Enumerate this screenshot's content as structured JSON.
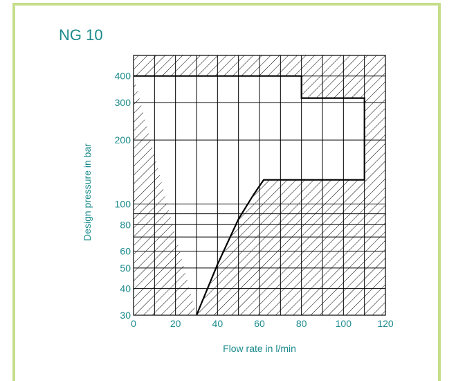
{
  "title": "NG 10",
  "chart_data": {
    "type": "area",
    "title": "NG 10",
    "xlabel": "Flow rate in l/min",
    "ylabel": "Design pressure in bar",
    "xlim": [
      0,
      120
    ],
    "ylim": [
      30,
      500
    ],
    "yscale": "log",
    "x_ticks": [
      0,
      20,
      40,
      60,
      80,
      100,
      120
    ],
    "y_ticks": [
      30,
      40,
      50,
      60,
      80,
      100,
      200,
      300,
      400
    ],
    "grid_x": [
      0,
      10,
      20,
      30,
      40,
      50,
      60,
      70,
      80,
      90,
      100,
      110,
      120
    ],
    "grid_y": [
      30,
      40,
      50,
      60,
      70,
      80,
      90,
      100,
      200,
      300,
      400
    ],
    "operating_limit": {
      "x": [
        30,
        40,
        50,
        57,
        62,
        110,
        110,
        80,
        80,
        0
      ],
      "y": [
        30,
        52,
        85,
        110,
        130,
        130,
        315,
        315,
        400,
        400
      ]
    }
  }
}
